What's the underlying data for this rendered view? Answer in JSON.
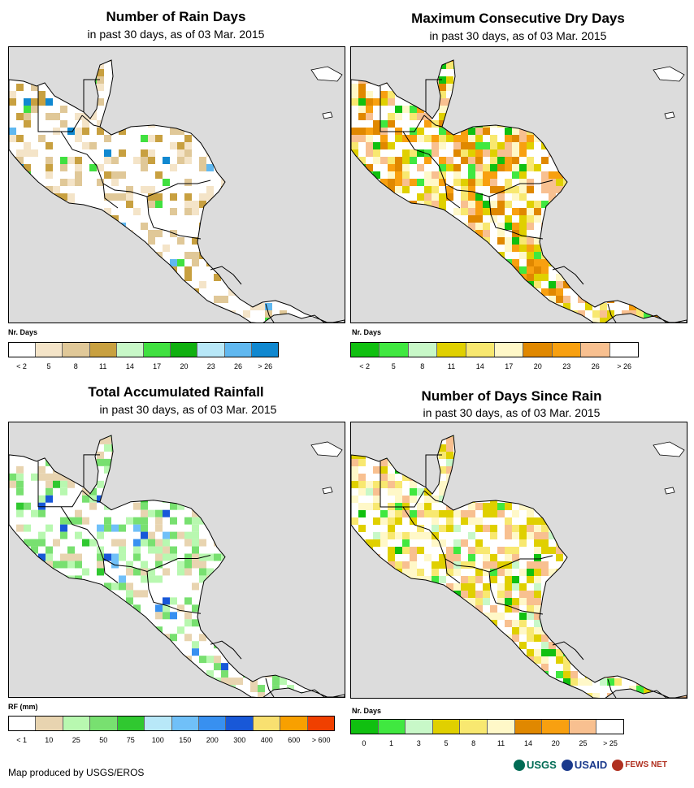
{
  "panels": [
    {
      "id": "rain-days",
      "title": "Number of Rain Days",
      "subtitle": "in past 30 days, as of 03 Mar. 2015",
      "legend_title": "Nr. Days",
      "legend_colors": [
        "#ffffff",
        "#f4e4c8",
        "#e0c898",
        "#c8a040",
        "#c8f8c8",
        "#40e040",
        "#10b010",
        "#b8e8f8",
        "#60b8f0",
        "#1088d0"
      ],
      "legend_labels": [
        "< 2",
        "5",
        "8",
        "11",
        "14",
        "17",
        "20",
        "23",
        "26",
        "> 26"
      ],
      "fill_colors": [
        "#f4e4c8",
        "#e0c898",
        "#c8a040"
      ],
      "accent_colors": [
        "#40e040",
        "#60b8f0",
        "#1088d0"
      ]
    },
    {
      "id": "dry-days",
      "title": "Maximum Consecutive Dry Days",
      "subtitle": "in past 30 days, as of 03 Mar. 2015",
      "legend_title": "Nr. Days",
      "legend_colors": [
        "#10c010",
        "#40e840",
        "#c8f8c8",
        "#e0d000",
        "#f8e870",
        "#fff8c8",
        "#e08800",
        "#f8a010",
        "#f8c090",
        "#ffffff"
      ],
      "legend_labels": [
        "< 2",
        "5",
        "8",
        "11",
        "14",
        "17",
        "20",
        "23",
        "26",
        "> 26"
      ],
      "fill_colors": [
        "#f8a010",
        "#e08800",
        "#e0d000",
        "#f8e870",
        "#fff8c8",
        "#f8c090"
      ],
      "accent_colors": [
        "#40e840",
        "#10c010"
      ]
    },
    {
      "id": "rainfall",
      "title": "Total Accumulated Rainfall",
      "subtitle": "in past 30 days, as of 03 Mar. 2015",
      "legend_title": "RF (mm)",
      "legend_colors": [
        "#ffffff",
        "#e8d4b0",
        "#b8f8b0",
        "#78e070",
        "#30c830",
        "#b8e8f8",
        "#70c0f8",
        "#3890f0",
        "#1858d8",
        "#f8e070",
        "#f8a000",
        "#f04000"
      ],
      "legend_labels": [
        "< 1",
        "10",
        "25",
        "50",
        "75",
        "100",
        "150",
        "200",
        "300",
        "400",
        "600",
        "> 600"
      ],
      "fill_colors": [
        "#e8d4b0",
        "#b8f8b0",
        "#78e070"
      ],
      "accent_colors": [
        "#70c0f8",
        "#3890f0",
        "#1858d8",
        "#30c830"
      ]
    },
    {
      "id": "since-rain",
      "title": "Number of Days Since Rain",
      "subtitle": "in past 30 days, as of 03 Mar. 2015",
      "legend_title": "Nr. Days",
      "legend_colors": [
        "#10c010",
        "#40e840",
        "#c8f8c8",
        "#e0d000",
        "#f8e870",
        "#fff8c8",
        "#e08800",
        "#f8a010",
        "#f8c090",
        "#ffffff"
      ],
      "legend_labels": [
        "0",
        "1",
        "3",
        "5",
        "8",
        "11",
        "14",
        "20",
        "25",
        "> 25"
      ],
      "fill_colors": [
        "#f8c090",
        "#fff8c8",
        "#e0d000",
        "#f8e870"
      ],
      "accent_colors": [
        "#40e840",
        "#10c010",
        "#c8f8c8"
      ]
    }
  ],
  "footer": {
    "credit": "Map produced by USGS/EROS",
    "logos": [
      "USGS",
      "USAID",
      "FEWS NET"
    ],
    "logo_colors": [
      "#006b54",
      "#1b3a8c",
      "#b03020"
    ]
  }
}
